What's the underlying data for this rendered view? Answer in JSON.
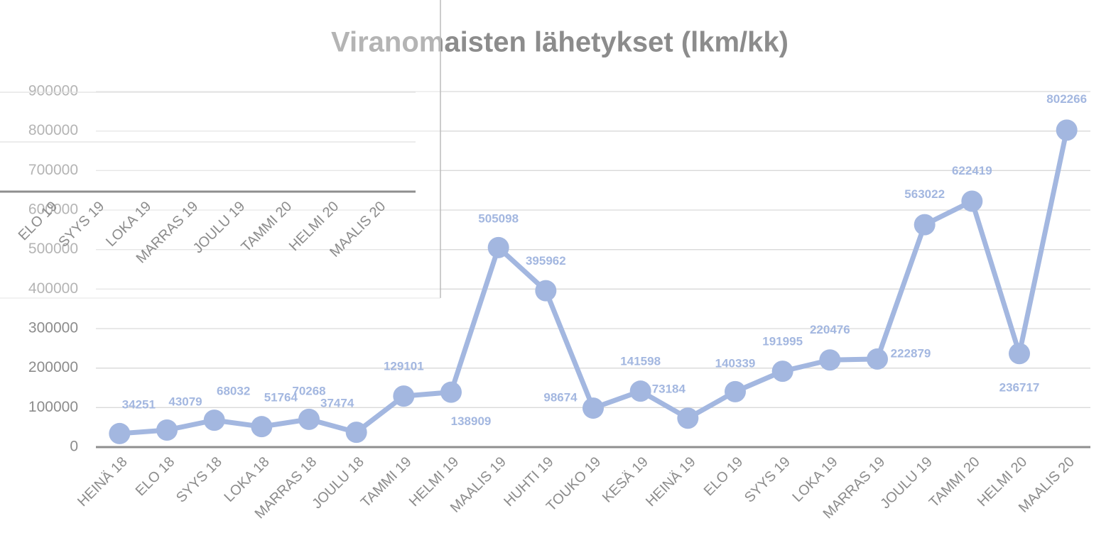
{
  "chart_data": [
    {
      "type": "line",
      "title": "Viranomaisten lähetykset (lkm/kk)",
      "categories": [
        "HEINÄ 18",
        "ELO 18",
        "SYYS 18",
        "LOKA 18",
        "MARRAS 18",
        "JOULU 18",
        "TAMMI 19",
        "HELMI 19",
        "MAALIS 19",
        "HUHTI 19",
        "TOUKO 19",
        "KESÄ 19",
        "HEINÄ 19",
        "ELO 19",
        "SYYS 19",
        "LOKA 19",
        "MARRAS 19",
        "JOULU 19",
        "TAMMI 20",
        "HELMI 20",
        "MAALIS 20"
      ],
      "series": [
        {
          "name": "Viranomaisten lähetykset",
          "color": "#a3b7e0",
          "values": [
            34251,
            43079,
            68032,
            51764,
            70268,
            37474,
            129101,
            138909,
            505098,
            395962,
            98674,
            141598,
            73184,
            140339,
            191995,
            220476,
            222879,
            563022,
            622419,
            236717,
            802266
          ]
        }
      ],
      "ylim": [
        0,
        900000
      ],
      "yticks": [
        0,
        100000,
        200000,
        300000,
        400000,
        500000,
        600000,
        700000,
        800000,
        900000
      ],
      "grid": true
    },
    {
      "type": "overlay",
      "categories": [
        "ELO 19",
        "SYYS 19",
        "LOKA 19",
        "MARRAS 19",
        "JOULU 19",
        "TAMMI 20",
        "HELMI 20",
        "MAALIS 20"
      ]
    }
  ]
}
